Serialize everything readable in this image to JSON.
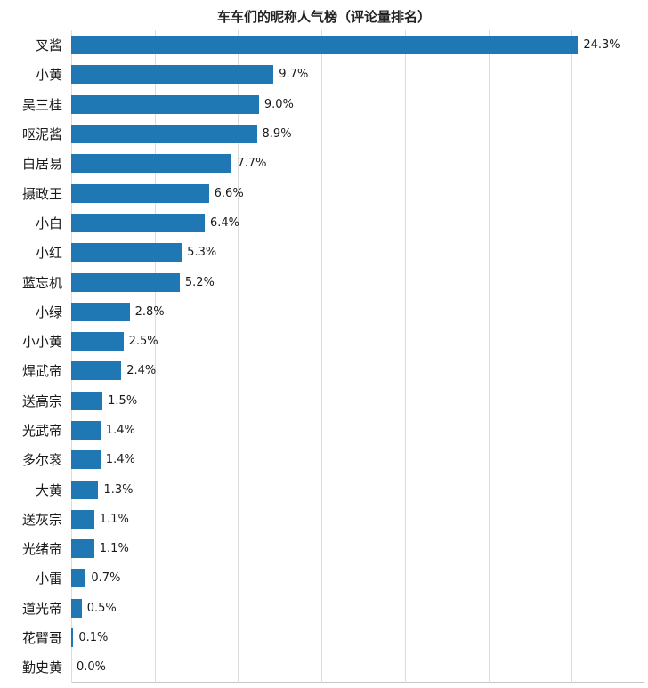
{
  "chart_data": {
    "type": "bar",
    "orientation": "horizontal",
    "title": "车车们的昵称人气榜（评论量排名）",
    "xlabel": "",
    "ylabel": "",
    "grid": "vertical",
    "legend": "none",
    "bar_color": "#1f77b4",
    "grid_color": "#dcdcdc",
    "xlim": [
      0,
      27.4
    ],
    "gridlines": [
      0,
      4,
      8,
      12,
      16,
      20,
      24
    ],
    "categories": [
      "叉酱",
      "小黄",
      "吴三桂",
      "呕泥酱",
      "白居易",
      "摄政王",
      "小白",
      "小红",
      "蓝忘机",
      "小绿",
      "小小黄",
      "焊武帝",
      "送高宗",
      "光武帝",
      "多尔衮",
      "大黄",
      "送灰宗",
      "光绪帝",
      "小雷",
      "道光帝",
      "花臂哥",
      "勤史黄"
    ],
    "values": [
      24.3,
      9.7,
      9.0,
      8.9,
      7.7,
      6.6,
      6.4,
      5.3,
      5.2,
      2.8,
      2.5,
      2.4,
      1.5,
      1.4,
      1.4,
      1.3,
      1.1,
      1.1,
      0.7,
      0.5,
      0.1,
      0.0
    ],
    "value_labels": [
      "24.3%",
      "9.7%",
      "9.0%",
      "8.9%",
      "7.7%",
      "6.6%",
      "6.4%",
      "5.3%",
      "5.2%",
      "2.8%",
      "2.5%",
      "2.4%",
      "1.5%",
      "1.4%",
      "1.4%",
      "1.3%",
      "1.1%",
      "1.1%",
      "0.7%",
      "0.5%",
      "0.1%",
      "0.0%"
    ]
  }
}
